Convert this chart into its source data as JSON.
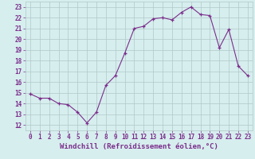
{
  "x": [
    0,
    1,
    2,
    3,
    4,
    5,
    6,
    7,
    8,
    9,
    10,
    11,
    12,
    13,
    14,
    15,
    16,
    17,
    18,
    19,
    20,
    21,
    22,
    23
  ],
  "y": [
    14.9,
    14.5,
    14.5,
    14.0,
    13.9,
    13.2,
    12.2,
    13.2,
    15.7,
    16.6,
    18.7,
    21.0,
    21.2,
    21.9,
    22.0,
    21.8,
    22.5,
    23.0,
    22.3,
    22.2,
    19.2,
    20.9,
    17.5,
    16.6
  ],
  "line_color": "#7b2d8b",
  "marker": "+",
  "marker_size": 3,
  "bg_color": "#d6eeee",
  "grid_color": "#b0c8c8",
  "xlabel": "Windchill (Refroidissement éolien,°C)",
  "xlim": [
    -0.5,
    23.5
  ],
  "ylim": [
    11.5,
    23.5
  ],
  "yticks": [
    12,
    13,
    14,
    15,
    16,
    17,
    18,
    19,
    20,
    21,
    22,
    23
  ],
  "xticks": [
    0,
    1,
    2,
    3,
    4,
    5,
    6,
    7,
    8,
    9,
    10,
    11,
    12,
    13,
    14,
    15,
    16,
    17,
    18,
    19,
    20,
    21,
    22,
    23
  ],
  "xlabel_fontsize": 6.5,
  "tick_fontsize": 5.5,
  "line_color_hex": "#7b2d8b"
}
